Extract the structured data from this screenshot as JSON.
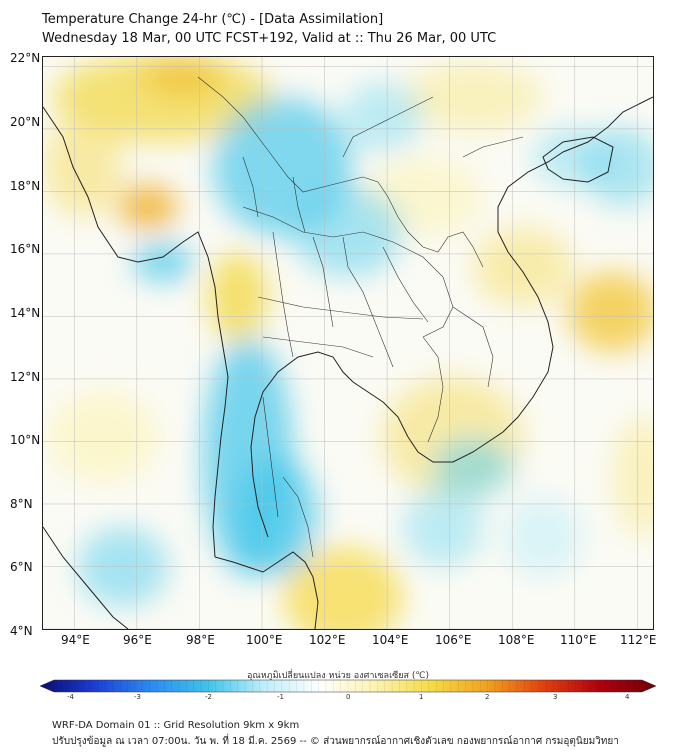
{
  "header": {
    "title": "Temperature Change 24-hr (℃) - [Data Assimilation]",
    "subtitle": "Wednesday 18 Mar, 00 UTC FCST+192, Valid at :: Thu 26 Mar, 00 UTC"
  },
  "map": {
    "lat_labels": [
      "22°N",
      "20°N",
      "18°N",
      "16°N",
      "14°N",
      "12°N",
      "10°N",
      "8°N",
      "6°N",
      "4°N"
    ],
    "lon_labels": [
      "94°E",
      "96°E",
      "98°E",
      "100°E",
      "102°E",
      "104°E",
      "106°E",
      "108°E",
      "110°E",
      "112°E"
    ],
    "lat_range": [
      4,
      22.3
    ],
    "lon_range": [
      93,
      112.5
    ],
    "colors": {
      "land_border": "#222222",
      "warm": "#f2d94a",
      "cool": "#3fc4ea",
      "grid": "#bbbbbb"
    }
  },
  "colorbar": {
    "title": "อุณหภูมิเปลี่ยนแปลง หน่วย องศาเซลเซียส (℃)",
    "min": -4,
    "max": 4,
    "ticks": [
      "-4",
      "-3",
      "-2",
      "-1",
      "0",
      "1",
      "2",
      "3",
      "4"
    ],
    "stops": [
      "#0a0a6e",
      "#1d3fd6",
      "#2d8cf0",
      "#3fc4ea",
      "#bfeefa",
      "#ffffff",
      "#fbf3b0",
      "#f5da45",
      "#f0a020",
      "#e04010",
      "#b00010",
      "#6e0008"
    ]
  },
  "footer": {
    "line1": "WRF-DA Domain 01 :: Grid Resolution 9km x 9km",
    "line2": "ปรับปรุงข้อมูล ณ เวลา 07:00น. วัน พ. ที่ 18 มี.ค. 2569 -- © ส่วนพยากรณ์อากาศเชิงตัวเลข กองพยากรณ์อากาศ กรมอุตุนิยมวิทยา"
  }
}
